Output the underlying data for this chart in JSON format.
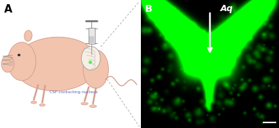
{
  "fig_width": 4.0,
  "fig_height": 1.84,
  "dpi": 100,
  "bg_color": "#ffffff",
  "panel_A": {
    "label": "A",
    "label_fontsize": 11,
    "label_color": "black",
    "body_color": "#f2c4ae",
    "body_edge_color": "#d4a090",
    "annotation_text": "CSF-contacting nucleus",
    "annotation_color": "#5566bb",
    "annotation_fontsize": 4.2,
    "dashed_line_color": "#999999"
  },
  "panel_B": {
    "label": "B",
    "label_fontsize": 10,
    "label_color": "white",
    "aq_text": "Aq",
    "aq_fontsize": 9,
    "scale_bar_color": "white"
  }
}
